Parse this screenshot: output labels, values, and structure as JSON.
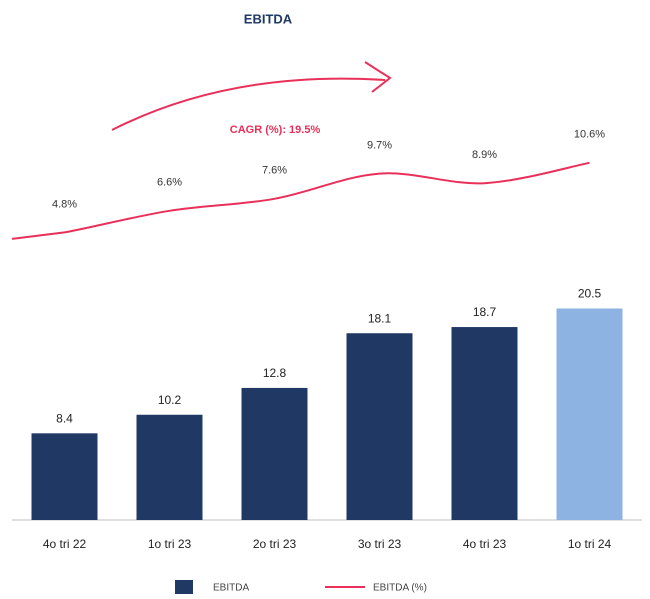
{
  "chart_data": {
    "type": "bar",
    "title": "EBITDA",
    "annotation": "CAGR (%): 19.5%",
    "categories": [
      "4o tri 22",
      "1o tri 23",
      "2o tri 23",
      "3o tri 23",
      "4o tri 23",
      "1o tri 24"
    ],
    "series": [
      {
        "name": "EBITDA",
        "type": "bar",
        "color": "#1f3864",
        "colors": [
          "#1f3864",
          "#1f3864",
          "#1f3864",
          "#1f3864",
          "#1f3864",
          "#8db3e2"
        ],
        "values": [
          8.4,
          10.2,
          12.8,
          18.1,
          18.7,
          20.5
        ]
      },
      {
        "name": "EBITDA (%)",
        "type": "line",
        "axis": "y2",
        "color": "#e8305a",
        "values": [
          4.8,
          6.6,
          7.6,
          9.7,
          8.9,
          10.6
        ],
        "value_labels": [
          "4.8%",
          "6.6%",
          "7.6%",
          "9.7%",
          "8.9%",
          "10.6%"
        ]
      }
    ],
    "ylim": [
      0,
      22
    ],
    "y2lim": [
      0,
      16
    ],
    "legend": "bottom"
  }
}
